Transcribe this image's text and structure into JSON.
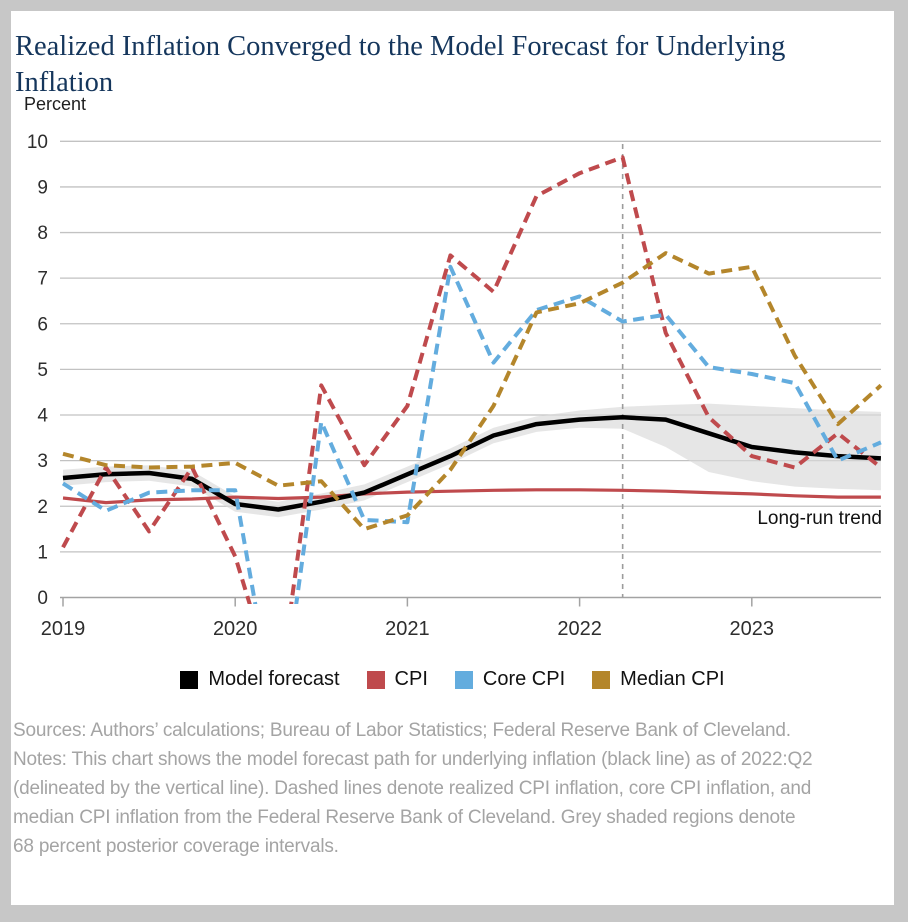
{
  "window": {
    "background_color": "#c7c7c7",
    "card_background_color": "#ffffff"
  },
  "header": {
    "title": "Realized Inflation Converged to the Model Forecast for Underlying Inflation",
    "axis_unit_label": "Percent"
  },
  "annotation": {
    "long_run_trend_label": "Long-run trend"
  },
  "legend": [
    {
      "label": "Model forecast",
      "color": "#000000"
    },
    {
      "label": "CPI",
      "color": "#bf4a4d"
    },
    {
      "label": "Core CPI",
      "color": "#63acde"
    },
    {
      "label": "Median CPI",
      "color": "#b4862b"
    }
  ],
  "footer": {
    "sources": "Sources: Authors’ calculations; Bureau of Labor Statistics; Federal Reserve Bank of Cleveland.",
    "notes": "Notes: This chart shows the model forecast path for underlying inflation (black line) as of 2022:Q2 (delineated by the vertical line). Dashed lines denote realized CPI inflation, core CPI inflation, and median CPI inflation from the Federal Reserve Bank of Cleveland. Grey shaded regions denote 68 percent posterior coverage intervals."
  },
  "chart_data": {
    "type": "line",
    "title": "Realized Inflation Converged to the Model Forecast for Underlying Inflation",
    "xlabel": "",
    "ylabel": "Percent",
    "ylim": [
      0,
      10
    ],
    "yticks": [
      0,
      1,
      2,
      3,
      4,
      5,
      6,
      7,
      8,
      9,
      10
    ],
    "xlim": [
      2019,
      2023.83
    ],
    "xticks": [
      2019,
      2020,
      2021,
      2022,
      2023
    ],
    "grid": true,
    "legend_position": "bottom",
    "vertical_line_x": 2022.25,
    "vertical_line_meaning": "2022:Q2 forecast origin",
    "x": [
      2019.0,
      2019.25,
      2019.5,
      2019.75,
      2020.0,
      2020.25,
      2020.5,
      2020.75,
      2021.0,
      2021.25,
      2021.5,
      2021.75,
      2022.0,
      2022.25,
      2022.5,
      2022.75,
      2023.0,
      2023.25,
      2023.5,
      2023.75
    ],
    "series": [
      {
        "name": "Model forecast",
        "color": "#000000",
        "style": "solid",
        "values": [
          2.62,
          2.7,
          2.73,
          2.6,
          2.05,
          1.93,
          2.1,
          2.3,
          2.7,
          3.1,
          3.55,
          3.8,
          3.9,
          3.95,
          3.9,
          3.6,
          3.3,
          3.18,
          3.1,
          3.05
        ]
      },
      {
        "name": "CPI",
        "color": "#bf4a4d",
        "style": "dashed",
        "values": [
          1.1,
          2.85,
          1.45,
          2.85,
          0.9,
          -2.2,
          4.65,
          2.9,
          4.2,
          7.5,
          6.7,
          8.8,
          9.3,
          9.65,
          5.8,
          3.95,
          3.1,
          2.85,
          3.6,
          2.85
        ]
      },
      {
        "name": "Core CPI",
        "color": "#63acde",
        "style": "dashed",
        "values": [
          2.5,
          1.9,
          2.3,
          2.35,
          2.35,
          -3.0,
          3.85,
          1.7,
          1.65,
          7.25,
          5.15,
          6.3,
          6.6,
          6.05,
          6.2,
          5.05,
          4.9,
          4.7,
          3.0,
          3.4
        ]
      },
      {
        "name": "Median CPI",
        "color": "#b4862b",
        "style": "dashed",
        "values": [
          3.15,
          2.9,
          2.85,
          2.87,
          2.95,
          2.45,
          2.55,
          1.5,
          1.8,
          2.8,
          4.2,
          6.25,
          6.45,
          6.9,
          7.55,
          7.1,
          7.25,
          5.3,
          3.8,
          4.65
        ]
      },
      {
        "name": "Long-run trend",
        "color": "#bf4a4d",
        "style": "solid",
        "values": [
          2.18,
          2.08,
          2.14,
          2.16,
          2.2,
          2.17,
          2.2,
          2.27,
          2.31,
          2.33,
          2.35,
          2.36,
          2.36,
          2.35,
          2.33,
          2.3,
          2.27,
          2.23,
          2.2,
          2.2
        ]
      }
    ],
    "band": {
      "name": "68 percent posterior coverage interval",
      "color": "#d8d8d8",
      "upper": [
        2.8,
        2.87,
        2.9,
        2.77,
        2.22,
        2.1,
        2.28,
        2.48,
        2.87,
        3.27,
        3.72,
        3.97,
        4.1,
        4.18,
        4.22,
        4.25,
        4.2,
        4.15,
        4.1,
        4.07
      ],
      "lower": [
        2.45,
        2.53,
        2.56,
        2.43,
        1.88,
        1.76,
        1.93,
        2.13,
        2.53,
        2.93,
        3.38,
        3.63,
        3.72,
        3.7,
        3.3,
        2.75,
        2.55,
        2.43,
        2.38,
        2.35
      ]
    }
  }
}
